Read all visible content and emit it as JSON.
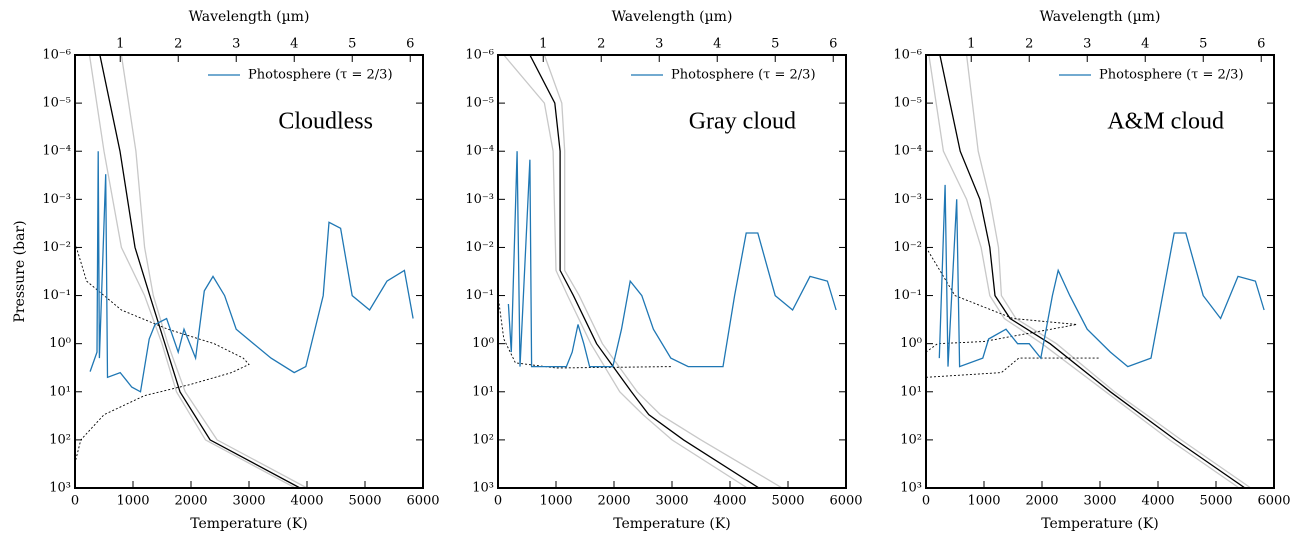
{
  "chart_data": [
    {
      "type": "line",
      "label": "Cloudless",
      "xlabel": "Temperature (K)",
      "x2label": "Wavelength (µm)",
      "ylabel": "Pressure (bar)",
      "xlim": [
        0,
        6000
      ],
      "xticks": [
        0,
        1000,
        2000,
        3000,
        4000,
        5000,
        6000
      ],
      "x2lim": [
        0.22,
        6.22
      ],
      "x2ticks": [
        1,
        2,
        3,
        4,
        5,
        6
      ],
      "ylim": [
        1e-06,
        1000
      ],
      "log_y": true,
      "legend": "upper right",
      "yticks": [
        {
          "value": 1e-06,
          "label": "10⁻⁶"
        },
        {
          "value": 1e-05,
          "label": "10⁻⁵"
        },
        {
          "value": 0.0001,
          "label": "10⁻⁴"
        },
        {
          "value": 0.001,
          "label": "10⁻³"
        },
        {
          "value": 0.01,
          "label": "10⁻²"
        },
        {
          "value": 0.1,
          "label": "10⁻¹"
        },
        {
          "value": 1,
          "label": "10⁰"
        },
        {
          "value": 10,
          "label": "10¹"
        },
        {
          "value": 100,
          "label": "10²"
        },
        {
          "value": 1000,
          "label": "10³"
        }
      ],
      "series": [
        {
          "color": "#c8c8c8",
          "x": [
            250,
            500,
            800,
            1200,
            1500,
            1750,
            2250,
            3800
          ],
          "values": [
            1e-06,
            0.0001,
            0.01,
            0.1,
            1,
            10,
            100,
            1000
          ]
        },
        {
          "color": "#c8c8c8",
          "x": [
            800,
            1050,
            1200,
            1350,
            1600,
            1900,
            2450,
            4000
          ],
          "values": [
            1e-06,
            0.0001,
            0.01,
            0.1,
            1,
            10,
            100,
            1000
          ]
        },
        {
          "color": "#000000",
          "x": [
            430,
            776,
            1034,
            1290,
            1550,
            1810,
            2330,
            3880
          ],
          "values": [
            1e-06,
            0.0001,
            0.01,
            0.1,
            1,
            10,
            100,
            1000
          ]
        },
        {
          "color": "#000000",
          "dash": "dotted",
          "x": [
            0,
            200,
            800,
            1600,
            2400,
            2900,
            3000,
            2700,
            2000,
            1200,
            500,
            100,
            0
          ],
          "values": [
            0.008,
            0.05,
            0.2,
            0.5,
            1,
            2,
            2.7,
            4,
            7,
            12,
            30,
            100,
            300
          ]
        },
        {
          "name": "Photosphere (τ = 2/3)",
          "color": "#1f77b4",
          "axis": "x2",
          "x": [
            0.48,
            0.6,
            0.62,
            0.64,
            0.75,
            0.78,
            1.0,
            1.2,
            1.35,
            1.5,
            1.6,
            1.8,
            2.0,
            2.1,
            2.3,
            2.45,
            2.6,
            2.8,
            3.0,
            3.3,
            3.6,
            4.0,
            4.2,
            4.5,
            4.6,
            4.8,
            5.0,
            5.3,
            5.6,
            5.9,
            6.05
          ],
          "values": [
            3.8,
            1.5,
            0.0001,
            2,
            0.0003,
            5,
            4,
            8,
            10,
            0.8,
            0.4,
            0.3,
            1.5,
            0.5,
            2,
            0.08,
            0.04,
            0.1,
            0.5,
            1,
            2,
            4,
            3,
            0.1,
            0.003,
            0.004,
            0.1,
            0.2,
            0.05,
            0.03,
            0.3
          ]
        }
      ]
    },
    {
      "type": "line",
      "label": "Gray cloud",
      "xlabel": "Temperature (K)",
      "x2label": "Wavelength (µm)",
      "xlim": [
        0,
        6000
      ],
      "xticks": [
        0,
        1000,
        2000,
        3000,
        4000,
        5000,
        6000
      ],
      "x2lim": [
        0.22,
        6.22
      ],
      "x2ticks": [
        1,
        2,
        3,
        4,
        5,
        6
      ],
      "ylim": [
        1e-06,
        1000
      ],
      "log_y": true,
      "legend": "upper right",
      "yticks": [
        {
          "value": 1e-06,
          "label": "10⁻⁶"
        },
        {
          "value": 1e-05,
          "label": "10⁻⁵"
        },
        {
          "value": 0.0001,
          "label": "10⁻⁴"
        },
        {
          "value": 0.001,
          "label": "10⁻³"
        },
        {
          "value": 0.01,
          "label": "10⁻²"
        },
        {
          "value": 0.1,
          "label": "10⁻¹"
        },
        {
          "value": 1,
          "label": "10⁰"
        },
        {
          "value": 10,
          "label": "10¹"
        },
        {
          "value": 100,
          "label": "10²"
        },
        {
          "value": 1000,
          "label": "10³"
        }
      ],
      "series": [
        {
          "color": "#c8c8c8",
          "x": [
            100,
            800,
            950,
            1000,
            1200,
            1600,
            2100,
            2500,
            3000,
            4300
          ],
          "values": [
            1e-06,
            1e-05,
            0.0001,
            0.03,
            0.1,
            1,
            10,
            30,
            100,
            1000
          ]
        },
        {
          "color": "#c8c8c8",
          "x": [
            800,
            1100,
            1150,
            1150,
            1400,
            1800,
            2400,
            2800,
            3500,
            4900
          ],
          "values": [
            1e-06,
            1e-05,
            0.0001,
            0.03,
            0.1,
            1,
            10,
            30,
            100,
            1000
          ]
        },
        {
          "color": "#000000",
          "x": [
            550,
            980,
            1070,
            1070,
            1300,
            1700,
            2300,
            2600,
            3200,
            4500
          ],
          "values": [
            1e-06,
            1e-05,
            0.0001,
            0.03,
            0.1,
            1,
            10,
            30,
            100,
            1000
          ]
        },
        {
          "color": "#000000",
          "dash": "dotted",
          "x": [
            0,
            100,
            300,
            1000,
            3000
          ],
          "values": [
            0.1,
            0.8,
            2.5,
            3.2,
            3
          ]
        },
        {
          "name": "Photosphere (τ = 2/3)",
          "color": "#1f77b4",
          "axis": "x2",
          "x": [
            0.4,
            0.45,
            0.55,
            0.6,
            0.77,
            0.8,
            1.4,
            1.5,
            1.6,
            1.7,
            1.8,
            2.2,
            2.35,
            2.5,
            2.7,
            2.9,
            3.2,
            3.5,
            4.1,
            4.3,
            4.5,
            4.7,
            5.0,
            5.3,
            5.6,
            5.9,
            6.05
          ],
          "values": [
            0.15,
            1.5,
            0.0001,
            3,
            0.00015,
            3,
            3,
            1.5,
            0.4,
            1,
            3,
            3,
            0.5,
            0.05,
            0.1,
            0.5,
            2,
            3,
            3,
            0.1,
            0.005,
            0.005,
            0.1,
            0.2,
            0.04,
            0.05,
            0.2
          ]
        }
      ]
    },
    {
      "type": "line",
      "label": "A&M cloud",
      "xlabel": "Temperature (K)",
      "x2label": "Wavelength (µm)",
      "xlim": [
        0,
        6000
      ],
      "xticks": [
        0,
        1000,
        2000,
        3000,
        4000,
        5000,
        6000
      ],
      "x2lim": [
        0.22,
        6.22
      ],
      "x2ticks": [
        1,
        2,
        3,
        4,
        5,
        6
      ],
      "ylim": [
        1e-06,
        1000
      ],
      "log_y": true,
      "legend": "upper right",
      "yticks": [
        {
          "value": 1e-06,
          "label": "10⁻⁶"
        },
        {
          "value": 1e-05,
          "label": "10⁻⁵"
        },
        {
          "value": 0.0001,
          "label": "10⁻⁴"
        },
        {
          "value": 0.001,
          "label": "10⁻³"
        },
        {
          "value": 0.01,
          "label": "10⁻²"
        },
        {
          "value": 0.1,
          "label": "10⁻¹"
        },
        {
          "value": 1,
          "label": "10⁰"
        },
        {
          "value": 10,
          "label": "10¹"
        },
        {
          "value": 100,
          "label": "10²"
        },
        {
          "value": 1000,
          "label": "10³"
        }
      ],
      "series": [
        {
          "color": "#c8c8c8",
          "x": [
            50,
            300,
            700,
            950,
            1100,
            1350,
            2000,
            3100,
            4200,
            5400
          ],
          "values": [
            1e-06,
            0.0001,
            0.001,
            0.01,
            0.1,
            0.3,
            1,
            10,
            100,
            1000
          ]
        },
        {
          "color": "#c8c8c8",
          "x": [
            700,
            900,
            1100,
            1250,
            1300,
            1550,
            2250,
            3250,
            4400,
            5600
          ],
          "values": [
            1e-06,
            0.0001,
            0.001,
            0.01,
            0.1,
            0.3,
            1,
            10,
            100,
            1000
          ]
        },
        {
          "color": "#000000",
          "x": [
            240,
            590,
            930,
            1100,
            1190,
            1450,
            2140,
            3180,
            4300,
            5500
          ],
          "values": [
            1e-06,
            0.0001,
            0.001,
            0.01,
            0.1,
            0.3,
            1,
            10,
            100,
            1000
          ]
        },
        {
          "color": "#000000",
          "dash": "dotted",
          "x": [
            0,
            500,
            1500,
            2600,
            1000,
            200,
            0
          ],
          "values": [
            0.01,
            0.1,
            0.3,
            0.4,
            0.9,
            1,
            1.5
          ]
        },
        {
          "color": "#000000",
          "dash": "dotted",
          "x": [
            0,
            1300,
            1600,
            3000
          ],
          "values": [
            5,
            4,
            2,
            2
          ]
        },
        {
          "name": "Photosphere (τ = 2/3)",
          "color": "#1f77b4",
          "axis": "x2",
          "x": [
            0.45,
            0.55,
            0.6,
            0.75,
            0.8,
            1.2,
            1.3,
            1.6,
            1.8,
            2.0,
            2.2,
            2.4,
            2.5,
            2.7,
            3.0,
            3.4,
            3.7,
            4.1,
            4.3,
            4.5,
            4.7,
            5.0,
            5.3,
            5.6,
            5.9,
            6.05
          ],
          "values": [
            2,
            0.0005,
            3,
            0.001,
            3,
            2,
            0.8,
            0.5,
            1,
            1,
            2,
            0.1,
            0.03,
            0.1,
            0.5,
            1.5,
            3,
            2,
            0.1,
            0.005,
            0.005,
            0.1,
            0.3,
            0.04,
            0.05,
            0.2
          ]
        }
      ]
    }
  ]
}
